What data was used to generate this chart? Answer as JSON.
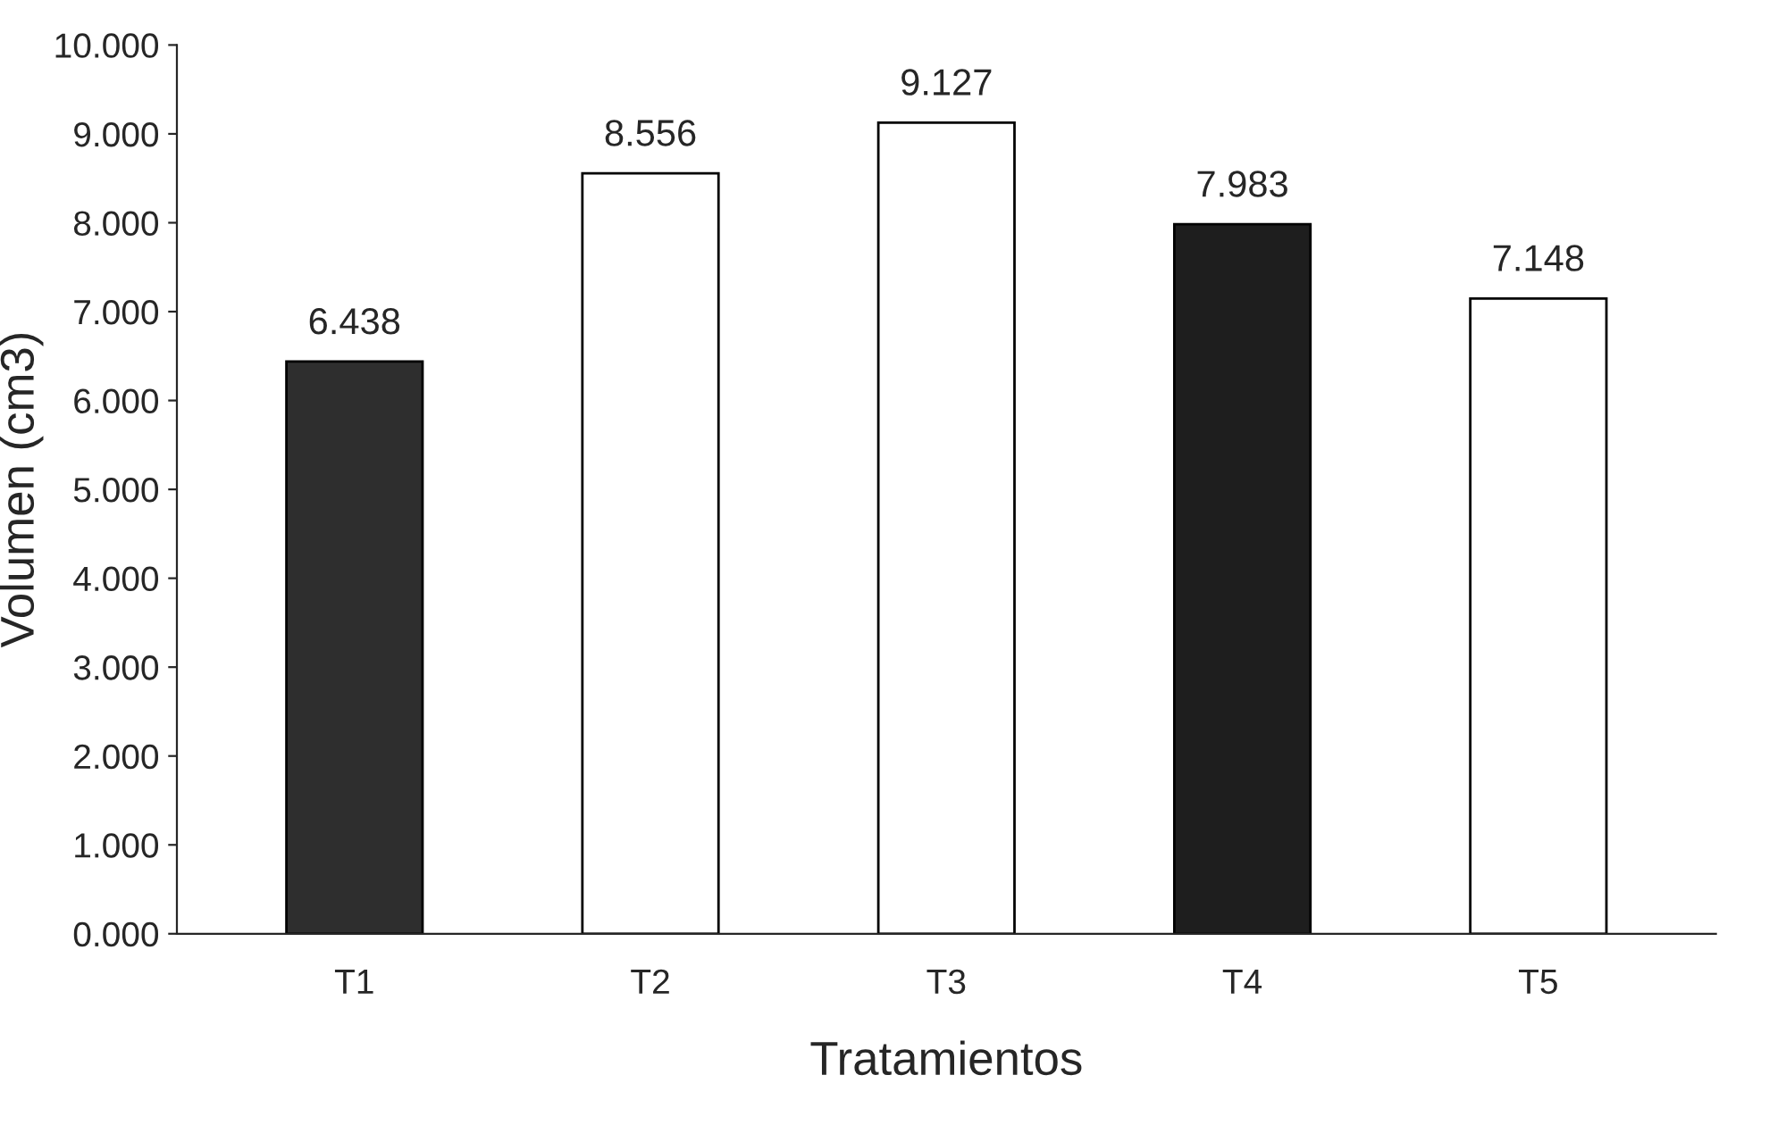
{
  "chart_data": {
    "type": "bar",
    "xlabel": "Tratamientos",
    "ylabel": "Volumen (cm3)",
    "categories": [
      "T1",
      "T2",
      "T3",
      "T4",
      "T5"
    ],
    "values": [
      6.438,
      8.556,
      9.127,
      7.983,
      7.148
    ],
    "colors": [
      "#2e2e2e",
      "#ffffff",
      "#ffffff",
      "#1e1e1e",
      "#ffffff"
    ],
    "ylim": [
      0,
      10
    ],
    "yticks": [
      {
        "value": 0,
        "label": "0.000"
      },
      {
        "value": 1,
        "label": "1.000"
      },
      {
        "value": 2,
        "label": "2.000"
      },
      {
        "value": 3,
        "label": "3.000"
      },
      {
        "value": 4,
        "label": "4.000"
      },
      {
        "value": 5,
        "label": "5.000"
      },
      {
        "value": 6,
        "label": "6.000"
      },
      {
        "value": 7,
        "label": "7.000"
      },
      {
        "value": 8,
        "label": "8.000"
      },
      {
        "value": 9,
        "label": "9.000"
      },
      {
        "value": 10,
        "label": "10.000"
      }
    ],
    "data_labels": true,
    "grid": false,
    "legend": false
  }
}
